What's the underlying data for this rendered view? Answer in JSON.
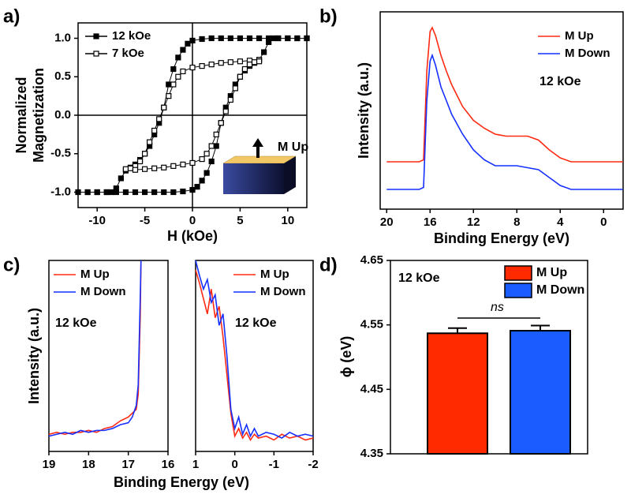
{
  "chart_data": [
    {
      "type": "line",
      "label": "a)",
      "y_label": [
        "Normalized",
        "Magnetization"
      ],
      "x_label": "H (kOe)",
      "xlim": [
        -12,
        12
      ],
      "ylim": [
        -1.2,
        1.2
      ],
      "xticks": [
        -10,
        -5,
        0,
        5,
        10
      ],
      "yticks": [
        {
          "value": -1,
          "label": "-1.0"
        },
        -0.5,
        {
          "value": 0,
          "label": "0.0"
        },
        0.5,
        {
          "value": 1,
          "label": "1.0"
        }
      ],
      "zero_lines": true,
      "legend": "upper left",
      "annotations": [
        "M Up"
      ],
      "series": [
        {
          "name": "12 kOe",
          "color": "#000000",
          "marker": "filled-square",
          "x": [
            12,
            11,
            10,
            9,
            8,
            7,
            6,
            5,
            4,
            3,
            2,
            1,
            0,
            -0.5,
            -1,
            -1.5,
            -2,
            -2.5,
            -3,
            -3.5,
            -4,
            -4.5,
            -5,
            -5.5,
            -6,
            -6.5,
            -7,
            -7.5,
            -8,
            -8.5,
            -9,
            -10,
            -11,
            -12,
            -11,
            -10,
            -9,
            -8,
            -7,
            -6,
            -5,
            -4,
            -3,
            -2,
            -1,
            0,
            0.5,
            1,
            1.5,
            2,
            2.5,
            3,
            3.5,
            4,
            4.5,
            5,
            5.5,
            6,
            6.5,
            7,
            7.5,
            8,
            8.5,
            9,
            10,
            11,
            12
          ],
          "values": [
            1,
            1,
            1,
            1,
            1,
            1,
            1,
            1,
            1,
            1,
            1,
            0.99,
            0.97,
            0.93,
            0.85,
            0.75,
            0.6,
            0.4,
            0.1,
            -0.1,
            -0.25,
            -0.4,
            -0.5,
            -0.58,
            -0.64,
            -0.68,
            -0.72,
            -0.82,
            -0.95,
            -1,
            -1,
            -1,
            -1,
            -1,
            -1,
            -1,
            -1,
            -1,
            -1,
            -1,
            -1,
            -1,
            -1,
            -1,
            -0.99,
            -0.97,
            -0.93,
            -0.85,
            -0.75,
            -0.6,
            -0.4,
            -0.1,
            0.1,
            0.25,
            0.4,
            0.5,
            0.58,
            0.64,
            0.68,
            0.72,
            0.82,
            0.95,
            1,
            1,
            1,
            1,
            1
          ]
        },
        {
          "name": "7 kOe",
          "color": "#000000",
          "marker": "open-square",
          "x": [
            7,
            6,
            5,
            4,
            3,
            2,
            1,
            0,
            -1,
            -1.5,
            -2,
            -2.5,
            -3,
            -3.5,
            -4,
            -4.5,
            -5,
            -5.5,
            -6,
            -6.5,
            -7,
            -6,
            -5,
            -4,
            -3,
            -2,
            -1,
            0,
            1,
            1.5,
            2,
            2.5,
            3,
            3.5,
            4,
            4.5,
            5,
            5.5,
            6,
            6.5,
            7
          ],
          "values": [
            0.72,
            0.71,
            0.7,
            0.69,
            0.68,
            0.66,
            0.64,
            0.62,
            0.57,
            0.5,
            0.4,
            0.25,
            0.1,
            -0.05,
            -0.2,
            -0.35,
            -0.5,
            -0.6,
            -0.66,
            -0.69,
            -0.7,
            -0.71,
            -0.7,
            -0.69,
            -0.68,
            -0.66,
            -0.64,
            -0.62,
            -0.57,
            -0.5,
            -0.4,
            -0.25,
            -0.1,
            0.05,
            0.2,
            0.35,
            0.5,
            0.6,
            0.66,
            0.69,
            0.7
          ]
        }
      ]
    },
    {
      "type": "line",
      "label": "b)",
      "y_label": [
        "Intensity (a.u.)"
      ],
      "x_label": "Binding Energy (eV)",
      "xlim": [
        20.6,
        -1.8
      ],
      "ylim": [
        0,
        100
      ],
      "xticks": [
        20,
        16,
        12,
        8,
        4,
        0
      ],
      "legend": "upper right",
      "annotations": [
        "12 kOe"
      ],
      "x": [
        20,
        18,
        17,
        16.6,
        16.3,
        16,
        15.8,
        15.5,
        15,
        14.5,
        14,
        13,
        12,
        11,
        10,
        9,
        8,
        7,
        6,
        5,
        4.5,
        4,
        3,
        2,
        0,
        -1.8
      ],
      "series": [
        {
          "name": "M Up",
          "color": "#ff2a12",
          "values": [
            24,
            24,
            24,
            25,
            70,
            90,
            92,
            88,
            78,
            70,
            63,
            52,
            45,
            41,
            38,
            37,
            37,
            37,
            35,
            30,
            28,
            26,
            24,
            24,
            24,
            24
          ]
        },
        {
          "name": "M Down",
          "color": "#1530ff",
          "values": [
            10,
            10,
            10,
            11,
            55,
            75,
            78,
            73,
            62,
            55,
            48,
            38,
            30,
            25,
            22,
            22,
            22,
            21,
            20,
            16,
            14,
            12,
            10,
            10,
            10,
            10
          ]
        }
      ]
    },
    {
      "type": "line",
      "label": "c)",
      "y_label": [
        "Intensity (a.u.)"
      ],
      "x_label": "Binding Energy (eV)",
      "xlim": [
        19,
        16
      ],
      "ylim": [
        0,
        100
      ],
      "xticks": [
        19,
        18,
        17,
        16
      ],
      "legend": "upper left",
      "annotations": [
        "12 kOe"
      ],
      "x": [
        19,
        18.8,
        18.6,
        18.4,
        18.2,
        18,
        17.8,
        17.6,
        17.4,
        17.2,
        17,
        16.9,
        16.8,
        16.75,
        16.7,
        16.68
      ],
      "series": [
        {
          "name": "M Up",
          "color": "#ff2a12",
          "values": [
            9,
            10,
            9,
            10,
            10,
            11,
            10,
            12,
            13,
            16,
            18,
            20,
            22,
            30,
            70,
            100
          ]
        },
        {
          "name": "M Down",
          "color": "#1530ff",
          "values": [
            8,
            9,
            10,
            9,
            11,
            10,
            11,
            11,
            12,
            14,
            15,
            18,
            24,
            35,
            80,
            100
          ]
        }
      ]
    },
    {
      "type": "line",
      "xlim": [
        1,
        -2
      ],
      "ylim": [
        0,
        100
      ],
      "xticks": [
        1,
        0,
        -1,
        -2
      ],
      "legend": "upper right",
      "annotations": [
        "12 kOe"
      ],
      "x": [
        1,
        0.9,
        0.8,
        0.7,
        0.6,
        0.5,
        0.4,
        0.3,
        0.2,
        0.1,
        0,
        -0.1,
        -0.2,
        -0.3,
        -0.4,
        -0.5,
        -0.6,
        -0.8,
        -1,
        -1.2,
        -1.4,
        -1.6,
        -1.8,
        -2
      ],
      "series": [
        {
          "name": "M Up",
          "color": "#ff2a12",
          "values": [
            95,
            88,
            80,
            72,
            85,
            70,
            76,
            60,
            40,
            20,
            8,
            12,
            7,
            10,
            6,
            9,
            7,
            8,
            6,
            9,
            7,
            8,
            6,
            7
          ]
        },
        {
          "name": "M Down",
          "color": "#1530ff",
          "values": [
            100,
            92,
            85,
            90,
            78,
            82,
            66,
            72,
            50,
            22,
            12,
            18,
            9,
            14,
            8,
            12,
            8,
            10,
            9,
            7,
            10,
            8,
            9,
            8
          ]
        }
      ]
    },
    {
      "type": "bar",
      "label": "d)",
      "y_label": [
        "ϕ (eV)"
      ],
      "ylim": [
        4.35,
        4.65
      ],
      "yticks": [
        4.35,
        4.45,
        4.55,
        4.65
      ],
      "legend": "upper right",
      "annotations": [
        "12 kOe",
        "ns"
      ],
      "series": [
        {
          "name": "M Up",
          "color": "#ff2a00",
          "values": [
            4.537
          ],
          "errors": [
            0.008
          ]
        },
        {
          "name": "M Down",
          "color": "#1a5cff",
          "values": [
            4.541
          ],
          "errors": [
            0.008
          ]
        }
      ]
    }
  ]
}
